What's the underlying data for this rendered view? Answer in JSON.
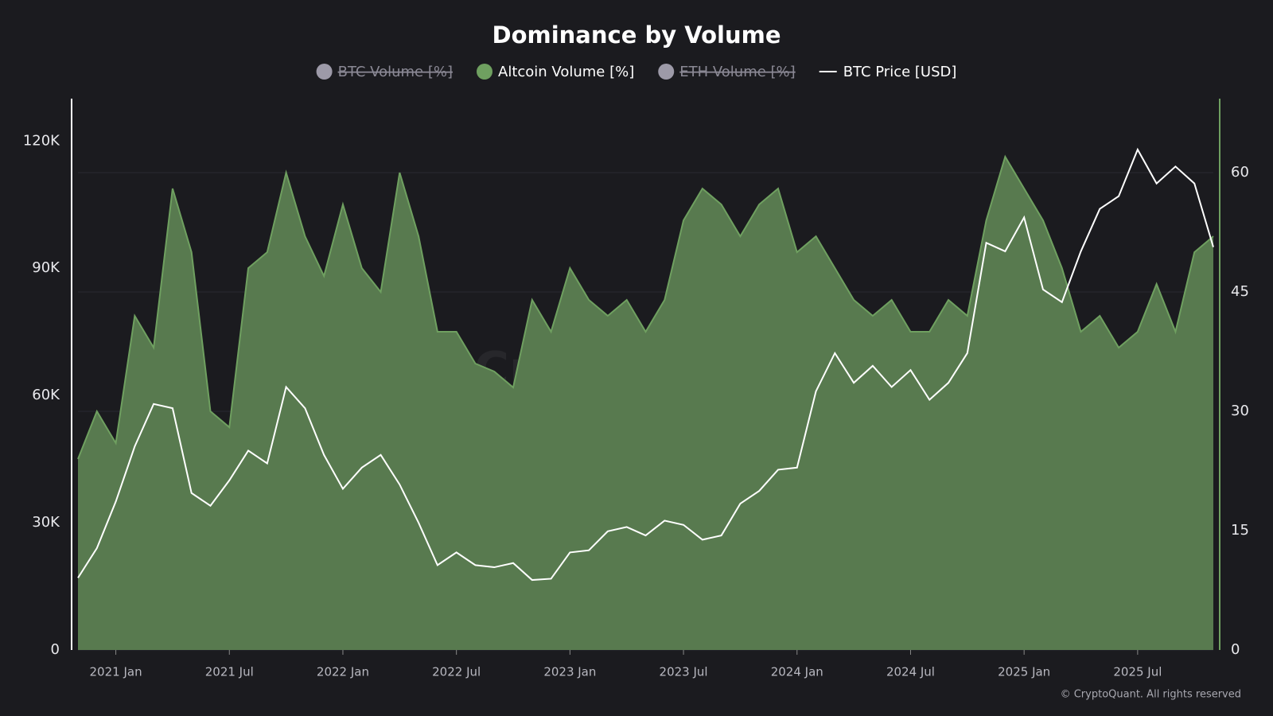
{
  "chart_data": {
    "type": "area-line",
    "title": "Dominance by Volume",
    "watermark": "CryptoQuant",
    "credit": "© CryptoQuant. All rights reserved",
    "x": [
      "2020-11",
      "2020-12",
      "2021-01",
      "2021-02",
      "2021-03",
      "2021-04",
      "2021-05",
      "2021-06",
      "2021-07",
      "2021-08",
      "2021-09",
      "2021-10",
      "2021-11",
      "2021-12",
      "2022-01",
      "2022-02",
      "2022-03",
      "2022-04",
      "2022-05",
      "2022-06",
      "2022-07",
      "2022-08",
      "2022-09",
      "2022-10",
      "2022-11",
      "2022-12",
      "2023-01",
      "2023-02",
      "2023-03",
      "2023-04",
      "2023-05",
      "2023-06",
      "2023-07",
      "2023-08",
      "2023-09",
      "2023-10",
      "2023-11",
      "2023-12",
      "2024-01",
      "2024-02",
      "2024-03",
      "2024-04",
      "2024-05",
      "2024-06",
      "2024-07",
      "2024-08",
      "2024-09",
      "2024-10",
      "2024-11",
      "2024-12",
      "2025-01",
      "2025-02",
      "2025-03",
      "2025-04",
      "2025-05",
      "2025-06",
      "2025-07",
      "2025-08",
      "2025-09",
      "2025-10",
      "2025-11"
    ],
    "xlim": [
      "2020-11",
      "2025-11"
    ],
    "xticks": [
      {
        "value": "2021-01",
        "label": "2021 Jan"
      },
      {
        "value": "2021-07",
        "label": "2021 Jul"
      },
      {
        "value": "2022-01",
        "label": "2022 Jan"
      },
      {
        "value": "2022-07",
        "label": "2022 Jul"
      },
      {
        "value": "2023-01",
        "label": "2023 Jan"
      },
      {
        "value": "2023-07",
        "label": "2023 Jul"
      },
      {
        "value": "2024-01",
        "label": "2024 Jan"
      },
      {
        "value": "2024-07",
        "label": "2024 Jul"
      },
      {
        "value": "2025-01",
        "label": "2025 Jan"
      },
      {
        "value": "2025-07",
        "label": "2025 Jul"
      }
    ],
    "ylim": [
      0,
      130000
    ],
    "yticks": [
      0,
      {
        "value": 30000,
        "label": "30K"
      },
      {
        "value": 60000,
        "label": "60K"
      },
      {
        "value": 90000,
        "label": "90K"
      },
      {
        "value": 120000,
        "label": "120K"
      }
    ],
    "y2lim": [
      0,
      69.3
    ],
    "y2ticks": [
      0,
      15,
      30,
      45,
      60
    ],
    "grid": true,
    "series": [
      {
        "name": "BTC Volume [%]",
        "color": "#9d9aa8",
        "hidden": true
      },
      {
        "name": "Altcoin Volume [%]",
        "color": "#6fa060",
        "axis": "y2",
        "kind": "area",
        "values": [
          24,
          30,
          26,
          42,
          38,
          58,
          50,
          30,
          28,
          48,
          50,
          60,
          52,
          47,
          56,
          48,
          45,
          60,
          52,
          40,
          40,
          36,
          35,
          33,
          44,
          40,
          48,
          44,
          42,
          44,
          40,
          44,
          54,
          58,
          56,
          52,
          56,
          58,
          50,
          52,
          48,
          44,
          42,
          44,
          40,
          40,
          44,
          42,
          54,
          62,
          58,
          54,
          48,
          40,
          42,
          38,
          40,
          46,
          40,
          50,
          52
        ]
      },
      {
        "name": "ETH Volume [%]",
        "color": "#9d9aa8",
        "hidden": true
      },
      {
        "name": "BTC Price [USD]",
        "color": "#ffffff",
        "kind": "line",
        "values": [
          17000,
          24000,
          35000,
          48000,
          58000,
          57000,
          37000,
          34000,
          40000,
          47000,
          44000,
          62000,
          57000,
          46000,
          38000,
          43000,
          46000,
          39000,
          30000,
          20000,
          23000,
          20000,
          19500,
          20500,
          16500,
          16800,
          23000,
          23500,
          28000,
          29000,
          27000,
          30500,
          29500,
          26000,
          27000,
          34500,
          37500,
          42500,
          43000,
          61000,
          70000,
          63000,
          67000,
          62000,
          66000,
          59000,
          63000,
          70000,
          96000,
          94000,
          102000,
          85000,
          82000,
          94000,
          104000,
          107000,
          118000,
          110000,
          114000,
          110000,
          95000
        ]
      }
    ]
  }
}
